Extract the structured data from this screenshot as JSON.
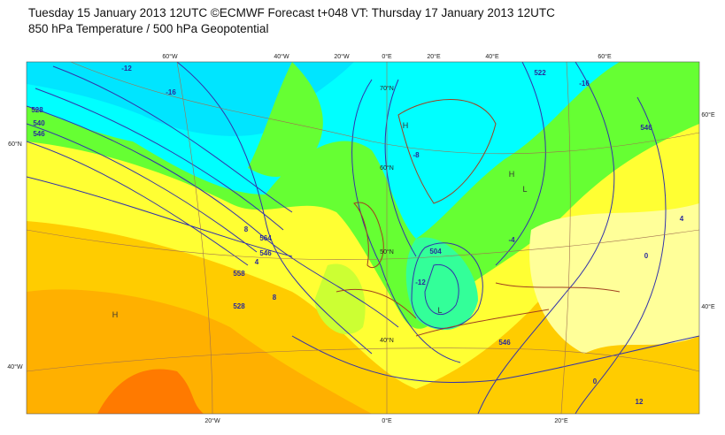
{
  "header": {
    "line1": "Tuesday 15 January 2013 12UTC ©ECMWF Forecast t+048 VT: Thursday 17 January 2013 12UTC",
    "line2": "850 hPa Temperature / 500 hPa Geopotential"
  },
  "map": {
    "lon_labels_top": [
      "60°W",
      "40°W",
      "20°W",
      "0°E",
      "20°E",
      "40°E",
      "60°E"
    ],
    "lon_labels_bottom": [
      "20°W",
      "0°E",
      "20°E"
    ],
    "lat_labels_left": [
      "60°N",
      "40°W"
    ],
    "lat_labels_right": [
      "60°E",
      "40°E"
    ],
    "lat_labels_inner": [
      "70°N",
      "60°N",
      "50°N",
      "40°N"
    ],
    "contour_labels": [
      "528",
      "558",
      "564",
      "546",
      "-12",
      "504",
      "528",
      "540",
      "546",
      "-16",
      "-12",
      "-16",
      "522",
      "546",
      "8",
      "4",
      "8",
      "-4",
      "0",
      "12",
      "0",
      "546",
      "-8",
      "4"
    ],
    "centers": [
      "H",
      "H",
      "L",
      "L",
      "H"
    ]
  }
}
